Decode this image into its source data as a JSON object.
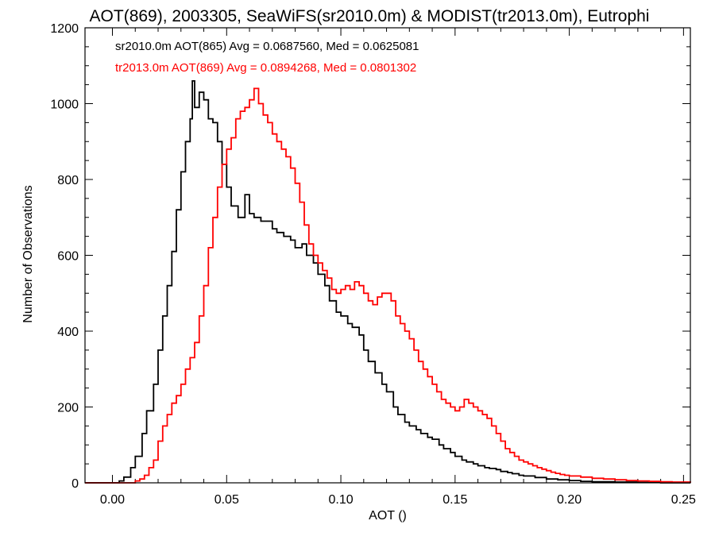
{
  "chart_data": {
    "type": "line",
    "title": "AOT(869), 2003305, SeaWiFS(sr2010.0m) & MODIST(tr2013.0m), Eutrophi",
    "xlabel": "AOT ()",
    "ylabel": "Number of Observations",
    "xlim": [
      -0.012,
      0.253
    ],
    "ylim": [
      0,
      1200
    ],
    "x_ticks": [
      0.0,
      0.05,
      0.1,
      0.15,
      0.2,
      0.25
    ],
    "x_tick_labels": [
      "0.00",
      "0.05",
      "0.10",
      "0.15",
      "0.20",
      "0.25"
    ],
    "y_ticks": [
      0,
      200,
      400,
      600,
      800,
      1000,
      1200
    ],
    "y_tick_labels": [
      "0",
      "200",
      "400",
      "600",
      "800",
      "1000",
      "1200"
    ],
    "grid": false,
    "step": true,
    "series": [
      {
        "name": "sr2010.0m AOT(865) Avg = 0.0687560, Med = 0.0625081",
        "color": "#000000",
        "points": [
          [
            -0.012,
            0
          ],
          [
            0.0,
            0
          ],
          [
            0.003,
            5
          ],
          [
            0.005,
            15
          ],
          [
            0.008,
            40
          ],
          [
            0.01,
            70
          ],
          [
            0.013,
            130
          ],
          [
            0.015,
            190
          ],
          [
            0.018,
            260
          ],
          [
            0.02,
            350
          ],
          [
            0.022,
            440
          ],
          [
            0.024,
            520
          ],
          [
            0.026,
            610
          ],
          [
            0.028,
            720
          ],
          [
            0.03,
            820
          ],
          [
            0.032,
            900
          ],
          [
            0.034,
            960
          ],
          [
            0.035,
            1060
          ],
          [
            0.036,
            990
          ],
          [
            0.038,
            1030
          ],
          [
            0.04,
            1010
          ],
          [
            0.042,
            960
          ],
          [
            0.044,
            950
          ],
          [
            0.046,
            900
          ],
          [
            0.048,
            840
          ],
          [
            0.05,
            780
          ],
          [
            0.052,
            730
          ],
          [
            0.055,
            700
          ],
          [
            0.058,
            760
          ],
          [
            0.06,
            710
          ],
          [
            0.062,
            700
          ],
          [
            0.065,
            690
          ],
          [
            0.068,
            690
          ],
          [
            0.07,
            670
          ],
          [
            0.072,
            660
          ],
          [
            0.075,
            650
          ],
          [
            0.078,
            640
          ],
          [
            0.08,
            620
          ],
          [
            0.083,
            630
          ],
          [
            0.085,
            600
          ],
          [
            0.088,
            580
          ],
          [
            0.09,
            550
          ],
          [
            0.093,
            520
          ],
          [
            0.095,
            480
          ],
          [
            0.098,
            450
          ],
          [
            0.1,
            440
          ],
          [
            0.103,
            420
          ],
          [
            0.105,
            410
          ],
          [
            0.108,
            390
          ],
          [
            0.11,
            350
          ],
          [
            0.112,
            320
          ],
          [
            0.115,
            290
          ],
          [
            0.118,
            260
          ],
          [
            0.12,
            240
          ],
          [
            0.123,
            200
          ],
          [
            0.125,
            180
          ],
          [
            0.128,
            160
          ],
          [
            0.13,
            150
          ],
          [
            0.133,
            140
          ],
          [
            0.135,
            130
          ],
          [
            0.138,
            120
          ],
          [
            0.14,
            115
          ],
          [
            0.143,
            100
          ],
          [
            0.145,
            90
          ],
          [
            0.148,
            80
          ],
          [
            0.15,
            70
          ],
          [
            0.153,
            60
          ],
          [
            0.155,
            55
          ],
          [
            0.158,
            50
          ],
          [
            0.16,
            45
          ],
          [
            0.163,
            40
          ],
          [
            0.165,
            38
          ],
          [
            0.168,
            35
          ],
          [
            0.17,
            30
          ],
          [
            0.173,
            27
          ],
          [
            0.175,
            24
          ],
          [
            0.178,
            20
          ],
          [
            0.18,
            18
          ],
          [
            0.185,
            14
          ],
          [
            0.19,
            10
          ],
          [
            0.195,
            8
          ],
          [
            0.2,
            6
          ],
          [
            0.205,
            4
          ],
          [
            0.21,
            3
          ],
          [
            0.22,
            2
          ],
          [
            0.23,
            1
          ],
          [
            0.24,
            0
          ],
          [
            0.253,
            0
          ]
        ]
      },
      {
        "name": "tr2013.0m AOT(869) Avg = 0.0894268, Med = 0.0801302",
        "color": "#ff0000",
        "points": [
          [
            -0.012,
            0
          ],
          [
            0.008,
            0
          ],
          [
            0.01,
            5
          ],
          [
            0.012,
            10
          ],
          [
            0.014,
            20
          ],
          [
            0.016,
            40
          ],
          [
            0.018,
            60
          ],
          [
            0.02,
            110
          ],
          [
            0.022,
            150
          ],
          [
            0.024,
            180
          ],
          [
            0.026,
            210
          ],
          [
            0.028,
            230
          ],
          [
            0.03,
            260
          ],
          [
            0.032,
            300
          ],
          [
            0.034,
            330
          ],
          [
            0.036,
            370
          ],
          [
            0.038,
            440
          ],
          [
            0.04,
            520
          ],
          [
            0.042,
            620
          ],
          [
            0.044,
            700
          ],
          [
            0.046,
            780
          ],
          [
            0.048,
            840
          ],
          [
            0.05,
            880
          ],
          [
            0.052,
            910
          ],
          [
            0.054,
            960
          ],
          [
            0.056,
            980
          ],
          [
            0.058,
            990
          ],
          [
            0.06,
            1010
          ],
          [
            0.062,
            1040
          ],
          [
            0.064,
            1000
          ],
          [
            0.066,
            970
          ],
          [
            0.068,
            950
          ],
          [
            0.07,
            920
          ],
          [
            0.072,
            900
          ],
          [
            0.074,
            880
          ],
          [
            0.076,
            860
          ],
          [
            0.078,
            830
          ],
          [
            0.08,
            790
          ],
          [
            0.082,
            740
          ],
          [
            0.084,
            680
          ],
          [
            0.086,
            630
          ],
          [
            0.088,
            600
          ],
          [
            0.09,
            580
          ],
          [
            0.092,
            560
          ],
          [
            0.094,
            540
          ],
          [
            0.096,
            510
          ],
          [
            0.098,
            500
          ],
          [
            0.1,
            510
          ],
          [
            0.102,
            520
          ],
          [
            0.104,
            510
          ],
          [
            0.106,
            530
          ],
          [
            0.108,
            520
          ],
          [
            0.11,
            500
          ],
          [
            0.112,
            480
          ],
          [
            0.114,
            470
          ],
          [
            0.116,
            490
          ],
          [
            0.118,
            500
          ],
          [
            0.12,
            500
          ],
          [
            0.122,
            480
          ],
          [
            0.124,
            440
          ],
          [
            0.126,
            420
          ],
          [
            0.128,
            400
          ],
          [
            0.13,
            380
          ],
          [
            0.132,
            350
          ],
          [
            0.134,
            320
          ],
          [
            0.136,
            300
          ],
          [
            0.138,
            280
          ],
          [
            0.14,
            260
          ],
          [
            0.142,
            240
          ],
          [
            0.144,
            220
          ],
          [
            0.146,
            210
          ],
          [
            0.148,
            200
          ],
          [
            0.15,
            190
          ],
          [
            0.152,
            200
          ],
          [
            0.154,
            220
          ],
          [
            0.156,
            210
          ],
          [
            0.158,
            200
          ],
          [
            0.16,
            190
          ],
          [
            0.162,
            180
          ],
          [
            0.164,
            170
          ],
          [
            0.166,
            150
          ],
          [
            0.168,
            130
          ],
          [
            0.17,
            110
          ],
          [
            0.172,
            90
          ],
          [
            0.174,
            80
          ],
          [
            0.176,
            70
          ],
          [
            0.178,
            60
          ],
          [
            0.18,
            55
          ],
          [
            0.182,
            50
          ],
          [
            0.184,
            45
          ],
          [
            0.186,
            40
          ],
          [
            0.188,
            36
          ],
          [
            0.19,
            32
          ],
          [
            0.192,
            28
          ],
          [
            0.194,
            25
          ],
          [
            0.196,
            22
          ],
          [
            0.198,
            20
          ],
          [
            0.2,
            18
          ],
          [
            0.205,
            15
          ],
          [
            0.21,
            12
          ],
          [
            0.215,
            10
          ],
          [
            0.22,
            8
          ],
          [
            0.225,
            6
          ],
          [
            0.23,
            5
          ],
          [
            0.235,
            4
          ],
          [
            0.24,
            3
          ],
          [
            0.245,
            2
          ],
          [
            0.25,
            2
          ],
          [
            0.253,
            0
          ]
        ]
      }
    ]
  }
}
